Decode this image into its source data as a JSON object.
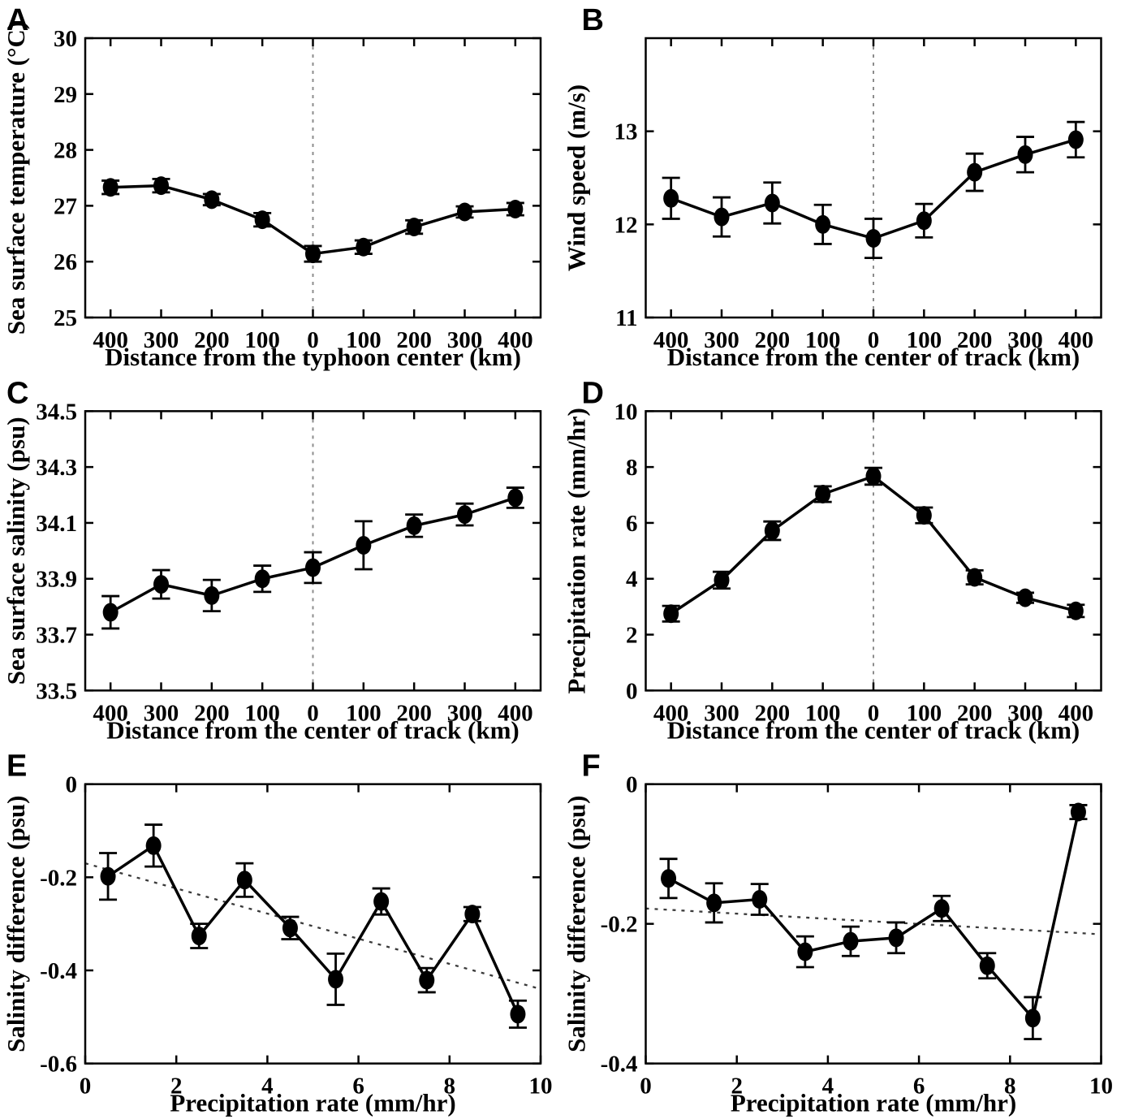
{
  "figure": {
    "background_color": "#ffffff",
    "ink_color": "#000000",
    "center_line_color": "#8c8c8c",
    "trend_line_color": "#3a3a3a",
    "panel_letters": [
      "A",
      "B",
      "C",
      "D",
      "E",
      "F"
    ]
  },
  "chart_data": [
    {
      "id": "A",
      "panel_label": "A",
      "type": "line",
      "title": "",
      "xlabel": "Distance from the typhoon center (km)",
      "ylabel": "Sea surface temperature (°C)",
      "xlim": [
        -450,
        450
      ],
      "ylim": [
        25,
        30
      ],
      "xticks": [
        -400,
        -300,
        -200,
        -100,
        0,
        100,
        200,
        300,
        400
      ],
      "xtick_labels": [
        "400",
        "300",
        "200",
        "100",
        "0",
        "100",
        "200",
        "300",
        "400"
      ],
      "yticks": [
        25,
        26,
        27,
        28,
        29,
        30
      ],
      "ytick_labels": [
        "25",
        "26",
        "27",
        "28",
        "29",
        "30"
      ],
      "x": [
        -400,
        -300,
        -200,
        -100,
        0,
        100,
        200,
        300,
        400
      ],
      "y": [
        27.33,
        27.36,
        27.11,
        26.75,
        26.14,
        26.26,
        26.62,
        26.89,
        26.94
      ],
      "yerr": [
        0.12,
        0.12,
        0.1,
        0.12,
        0.14,
        0.12,
        0.12,
        0.1,
        0.11
      ],
      "vline_x": 0,
      "grid": false,
      "legend": null
    },
    {
      "id": "B",
      "panel_label": "B",
      "type": "line",
      "title": "",
      "xlabel": "Distance from the center of track (km)",
      "ylabel": "Wind speed (m/s)",
      "xlim": [
        -450,
        450
      ],
      "ylim": [
        11,
        14
      ],
      "xticks": [
        -400,
        -300,
        -200,
        -100,
        0,
        100,
        200,
        300,
        400
      ],
      "xtick_labels": [
        "400",
        "300",
        "200",
        "100",
        "0",
        "100",
        "200",
        "300",
        "400"
      ],
      "yticks": [
        11,
        12,
        13
      ],
      "ytick_labels": [
        "11",
        "12",
        "13"
      ],
      "x": [
        -400,
        -300,
        -200,
        -100,
        0,
        100,
        200,
        300,
        400
      ],
      "y": [
        12.28,
        12.08,
        12.23,
        12.0,
        11.85,
        12.04,
        12.56,
        12.75,
        12.91
      ],
      "yerr": [
        0.22,
        0.21,
        0.22,
        0.21,
        0.21,
        0.18,
        0.2,
        0.19,
        0.19
      ],
      "vline_x": 0,
      "grid": false,
      "legend": null
    },
    {
      "id": "C",
      "panel_label": "C",
      "type": "line",
      "title": "",
      "xlabel": "Distance from the center of track (km)",
      "ylabel": "Sea surface salinity (psu)",
      "xlim": [
        -450,
        450
      ],
      "ylim": [
        33.5,
        34.5
      ],
      "xticks": [
        -400,
        -300,
        -200,
        -100,
        0,
        100,
        200,
        300,
        400
      ],
      "xtick_labels": [
        "400",
        "300",
        "200",
        "100",
        "0",
        "100",
        "200",
        "300",
        "400"
      ],
      "yticks": [
        33.5,
        33.7,
        33.9,
        34.1,
        34.3,
        34.5
      ],
      "ytick_labels": [
        "33.5",
        "33.7",
        "33.9",
        "34.1",
        "34.3",
        "34.5"
      ],
      "x": [
        -400,
        -300,
        -200,
        -100,
        0,
        100,
        200,
        300,
        400
      ],
      "y": [
        33.78,
        33.88,
        33.84,
        33.9,
        33.94,
        34.02,
        34.09,
        34.13,
        34.19
      ],
      "yerr": [
        0.058,
        0.051,
        0.056,
        0.047,
        0.055,
        0.086,
        0.04,
        0.039,
        0.036
      ],
      "vline_x": 0,
      "grid": false,
      "legend": null
    },
    {
      "id": "D",
      "panel_label": "D",
      "type": "line",
      "title": "",
      "xlabel": "Distance from the center of track (km)",
      "ylabel": "Precipitation rate (mm/hr)",
      "xlim": [
        -450,
        450
      ],
      "ylim": [
        0,
        10
      ],
      "xticks": [
        -400,
        -300,
        -200,
        -100,
        0,
        100,
        200,
        300,
        400
      ],
      "xtick_labels": [
        "400",
        "300",
        "200",
        "100",
        "0",
        "100",
        "200",
        "300",
        "400"
      ],
      "yticks": [
        0,
        2,
        4,
        6,
        8,
        10
      ],
      "ytick_labels": [
        "0",
        "2",
        "4",
        "6",
        "8",
        "10"
      ],
      "x": [
        -400,
        -300,
        -200,
        -100,
        0,
        100,
        200,
        300,
        400
      ],
      "y": [
        2.75,
        3.95,
        5.72,
        7.03,
        7.67,
        6.27,
        4.05,
        3.32,
        2.85
      ],
      "yerr": [
        0.28,
        0.3,
        0.33,
        0.28,
        0.3,
        0.28,
        0.25,
        0.18,
        0.22
      ],
      "vline_x": 0,
      "grid": false,
      "legend": null
    },
    {
      "id": "E",
      "panel_label": "E",
      "type": "line",
      "title": "",
      "xlabel": "Precipitation rate (mm/hr)",
      "ylabel": "Salinity difference (psu)",
      "xlim": [
        0,
        10
      ],
      "ylim": [
        -0.6,
        0
      ],
      "xticks": [
        0,
        2,
        4,
        6,
        8,
        10
      ],
      "xtick_labels": [
        "0",
        "2",
        "4",
        "6",
        "8",
        "10"
      ],
      "yticks": [
        -0.6,
        -0.4,
        -0.2,
        0
      ],
      "ytick_labels": [
        "-0.6",
        "-0.4",
        "-0.2",
        "0"
      ],
      "x": [
        0.5,
        1.5,
        2.5,
        3.5,
        4.5,
        5.5,
        6.5,
        7.5,
        8.5,
        9.5
      ],
      "y": [
        -0.198,
        -0.132,
        -0.326,
        -0.206,
        -0.309,
        -0.419,
        -0.252,
        -0.421,
        -0.279,
        -0.494
      ],
      "yerr": [
        0.05,
        0.045,
        0.026,
        0.036,
        0.024,
        0.055,
        0.028,
        0.026,
        0.015,
        0.029
      ],
      "trend": {
        "x1": 0,
        "y1": -0.17,
        "x2": 10,
        "y2": -0.44
      },
      "grid": false,
      "legend": null
    },
    {
      "id": "F",
      "panel_label": "F",
      "type": "line",
      "title": "",
      "xlabel": "Precipitation rate (mm/hr)",
      "ylabel": "Salinity difference (psu)",
      "xlim": [
        0,
        10
      ],
      "ylim": [
        -0.4,
        0
      ],
      "xticks": [
        0,
        2,
        4,
        6,
        8,
        10
      ],
      "xtick_labels": [
        "0",
        "2",
        "4",
        "6",
        "8",
        "10"
      ],
      "yticks": [
        -0.4,
        -0.2,
        0
      ],
      "ytick_labels": [
        "-0.4",
        "-0.2",
        "0"
      ],
      "x": [
        0.5,
        1.5,
        2.5,
        3.5,
        4.5,
        5.5,
        6.5,
        7.5,
        8.5,
        9.5
      ],
      "y": [
        -0.135,
        -0.17,
        -0.165,
        -0.24,
        -0.225,
        -0.22,
        -0.178,
        -0.26,
        -0.335,
        -0.04
      ],
      "yerr": [
        0.028,
        0.028,
        0.022,
        0.022,
        0.021,
        0.022,
        0.018,
        0.018,
        0.03,
        0.01
      ],
      "trend": {
        "x1": 0,
        "y1": -0.178,
        "x2": 10,
        "y2": -0.215
      },
      "grid": false,
      "legend": null
    }
  ]
}
